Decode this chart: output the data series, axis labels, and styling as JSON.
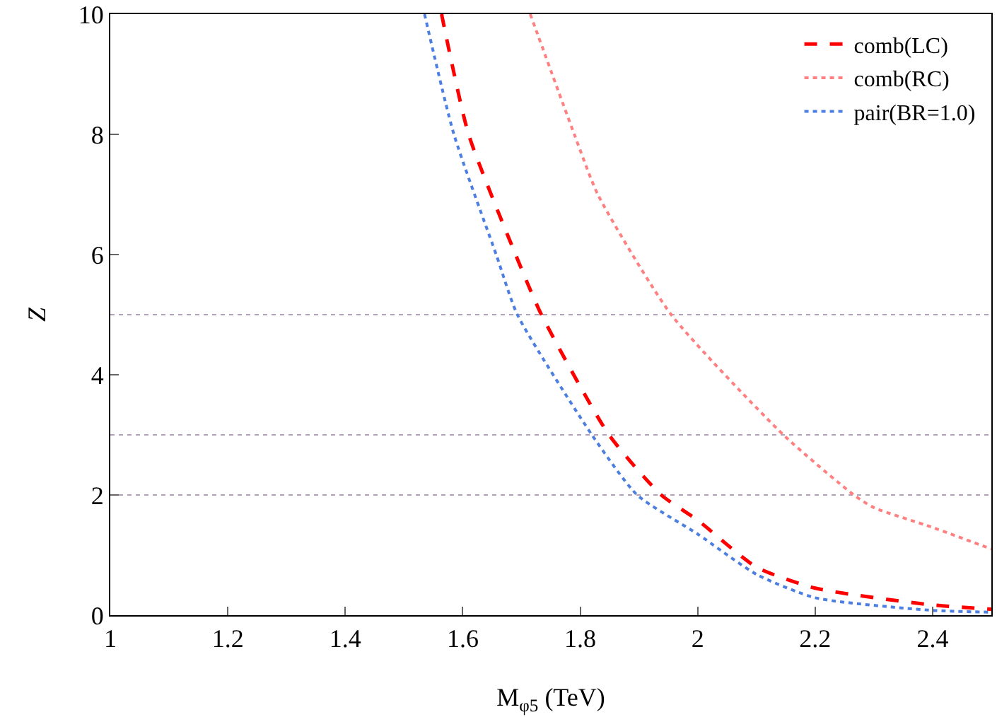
{
  "chart_data": {
    "type": "line",
    "xlabel": "M$_{φ5}$ (TeV)",
    "ylabel": "Z",
    "xlim": [
      1,
      2.5
    ],
    "ylim": [
      0,
      10
    ],
    "xticks": [
      1,
      1.2,
      1.4,
      1.6,
      1.8,
      2,
      2.2,
      2.4
    ],
    "yticks": [
      0,
      2,
      4,
      6,
      8,
      10
    ],
    "grid": false,
    "legend": "top right",
    "marker": "none",
    "series": [
      {
        "name": "comb(LC)",
        "color": "#ff0000",
        "line_style": "dashed",
        "x": [
          1.564,
          1.61,
          1.69,
          1.734,
          1.849,
          1.938,
          2.0,
          2.1,
          2.2,
          2.4,
          2.5
        ],
        "values": [
          10,
          8,
          6,
          5,
          3,
          2,
          1.58,
          0.8,
          0.45,
          0.17,
          0.1
        ]
      },
      {
        "name": "comb(RC)",
        "color": "#ff8080",
        "line_style": "dotted",
        "x": [
          1.715,
          1.79,
          1.83,
          1.955,
          2.146,
          2.266,
          2.3,
          2.4,
          2.5
        ],
        "values": [
          10,
          8,
          7,
          5,
          3,
          2,
          1.79,
          1.46,
          1.1
        ]
      },
      {
        "name": "pair(BR=1.0)",
        "color": "#4d7fe0",
        "line_style": "dotted",
        "x": [
          1.535,
          1.585,
          1.657,
          1.693,
          1.82,
          1.897,
          2.0,
          2.1,
          2.2,
          2.4,
          2.5
        ],
        "values": [
          10,
          8,
          6,
          5,
          3,
          2,
          1.35,
          0.68,
          0.29,
          0.08,
          0.05
        ]
      }
    ],
    "ref_lines": [
      {
        "axis": "y",
        "value": 2,
        "color": "#b0a0b8",
        "line_style": "dotted"
      },
      {
        "axis": "y",
        "value": 3,
        "color": "#b0a0b8",
        "line_style": "dotted"
      },
      {
        "axis": "y",
        "value": 5,
        "color": "#b0a0b8",
        "line_style": "dotted"
      }
    ]
  }
}
